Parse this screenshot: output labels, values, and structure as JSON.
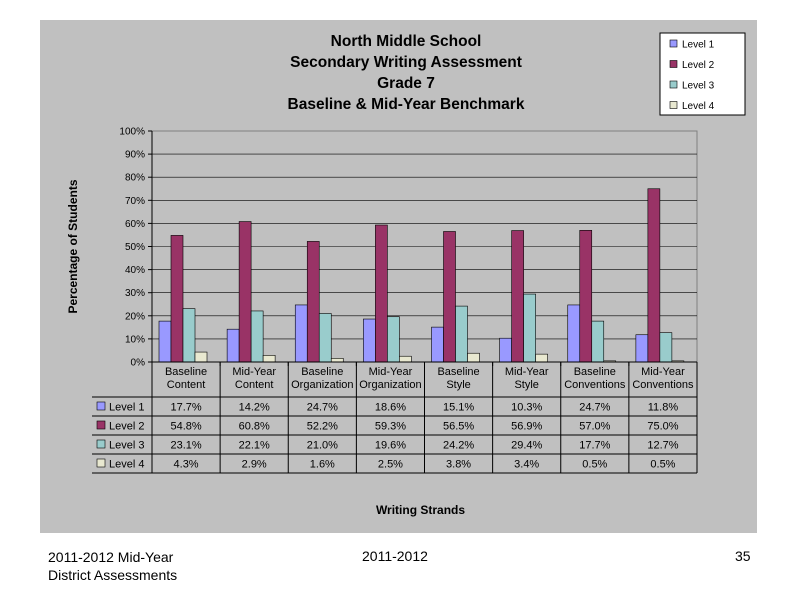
{
  "footer": {
    "left_line1": "2011-2012  Mid-Year",
    "left_line2": "District Assessments",
    "center": "2011-2012",
    "page_number": "35"
  },
  "chart_data": {
    "type": "bar",
    "title_lines": [
      "North Middle School",
      "Secondary Writing Assessment",
      "Grade 7",
      "Baseline & Mid-Year Benchmark"
    ],
    "xlabel": "Writing Strands",
    "ylabel": "Percentage of Students",
    "ylim": [
      0,
      100
    ],
    "yticks": [
      "0%",
      "10%",
      "20%",
      "30%",
      "40%",
      "50%",
      "60%",
      "70%",
      "80%",
      "90%",
      "100%"
    ],
    "categories": [
      [
        "Baseline",
        "Content"
      ],
      [
        "Mid-Year",
        "Content"
      ],
      [
        "Baseline",
        "Organization"
      ],
      [
        "Mid-Year",
        "Organization"
      ],
      [
        "Baseline",
        "Style"
      ],
      [
        "Mid-Year",
        "Style"
      ],
      [
        "Baseline",
        "Conventions"
      ],
      [
        "Mid-Year",
        "Conventions"
      ]
    ],
    "series": [
      {
        "name": "Level 1",
        "color": "#9999ff",
        "values": [
          17.7,
          14.2,
          24.7,
          18.6,
          15.1,
          10.3,
          24.7,
          11.8
        ],
        "labels": [
          "17.7%",
          "14.2%",
          "24.7%",
          "18.6%",
          "15.1%",
          "10.3%",
          "24.7%",
          "11.8%"
        ]
      },
      {
        "name": "Level 2",
        "color": "#993366",
        "values": [
          54.8,
          60.8,
          52.2,
          59.3,
          56.5,
          56.9,
          57.0,
          75.0
        ],
        "labels": [
          "54.8%",
          "60.8%",
          "52.2%",
          "59.3%",
          "56.5%",
          "56.9%",
          "57.0%",
          "75.0%"
        ]
      },
      {
        "name": "Level 3",
        "color": "#99cccc",
        "values": [
          23.1,
          22.1,
          21.0,
          19.6,
          24.2,
          29.4,
          17.7,
          12.7
        ],
        "labels": [
          "23.1%",
          "22.1%",
          "21.0%",
          "19.6%",
          "24.2%",
          "29.4%",
          "17.7%",
          "12.7%"
        ]
      },
      {
        "name": "Level 4",
        "color": "#e8e8d0",
        "values": [
          4.3,
          2.9,
          1.6,
          2.5,
          3.8,
          3.4,
          0.5,
          0.5
        ],
        "labels": [
          "4.3%",
          "2.9%",
          "1.6%",
          "2.5%",
          "3.8%",
          "3.4%",
          "0.5%",
          "0.5%"
        ]
      }
    ],
    "legend_position": "top-right",
    "grid": true,
    "data_table": true,
    "plot_background": "#c0c0c0"
  }
}
